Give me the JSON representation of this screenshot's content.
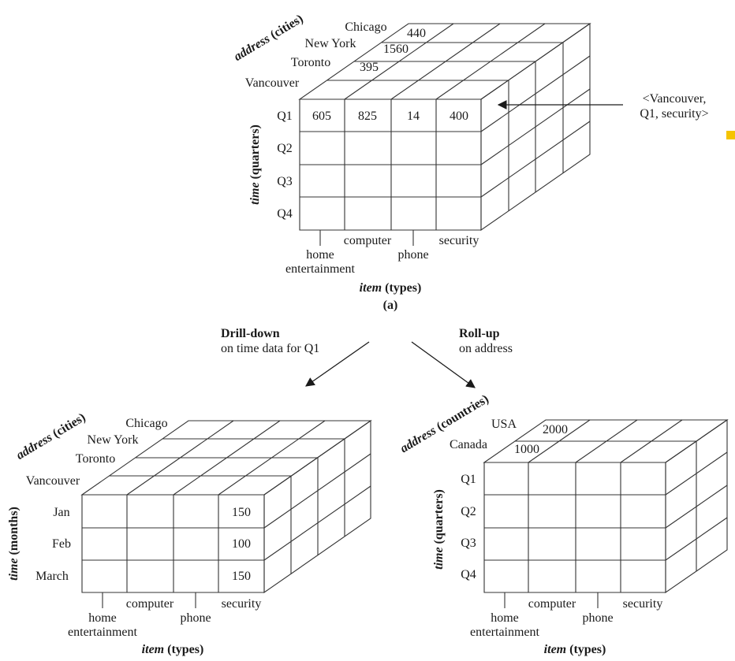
{
  "cube_a": {
    "address_axis": "address (cities)",
    "time_axis": "time (quarters)",
    "item_axis_em": "item",
    "item_axis_rest": "(types)",
    "caption": "(a)",
    "cities": [
      "Chicago",
      "New York",
      "Toronto",
      "Vancouver"
    ],
    "quarters": [
      "Q1",
      "Q2",
      "Q3",
      "Q4"
    ],
    "items": {
      "home": "home",
      "entertainment": "entertainment",
      "computer": "computer",
      "phone": "phone",
      "security": "security"
    },
    "front_q1_values": [
      "605",
      "825",
      "14",
      "400"
    ],
    "top_values": {
      "chicago": "440",
      "newyork": "1560",
      "toronto": "395"
    },
    "annotation_line1": "<Vancouver,",
    "annotation_line2": "Q1, security>"
  },
  "operations": {
    "drill_title": "Drill-down",
    "drill_desc": "on time data for Q1",
    "roll_title": "Roll-up",
    "roll_desc": "on address"
  },
  "cube_b": {
    "address_axis": "address (cities)",
    "time_axis": "time (months)",
    "item_axis_em": "item",
    "item_axis_rest": "(types)",
    "cities": [
      "Chicago",
      "New York",
      "Toronto",
      "Vancouver"
    ],
    "months": [
      "Jan",
      "Feb",
      "March"
    ],
    "items": {
      "home": "home",
      "entertainment": "entertainment",
      "computer": "computer",
      "phone": "phone",
      "security": "security"
    },
    "security_values": [
      "150",
      "100",
      "150"
    ]
  },
  "cube_c": {
    "address_axis": "address (countries)",
    "time_axis": "time (quarters)",
    "item_axis_em": "item",
    "item_axis_rest": "(types)",
    "countries": [
      "USA",
      "Canada"
    ],
    "quarters": [
      "Q1",
      "Q2",
      "Q3",
      "Q4"
    ],
    "items": {
      "home": "home",
      "entertainment": "entertainment",
      "computer": "computer",
      "phone": "phone",
      "security": "security"
    },
    "top_values": {
      "usa": "2000",
      "canada": "1000"
    }
  },
  "colors": {
    "marker": "#f5c400",
    "line": "#333333"
  }
}
